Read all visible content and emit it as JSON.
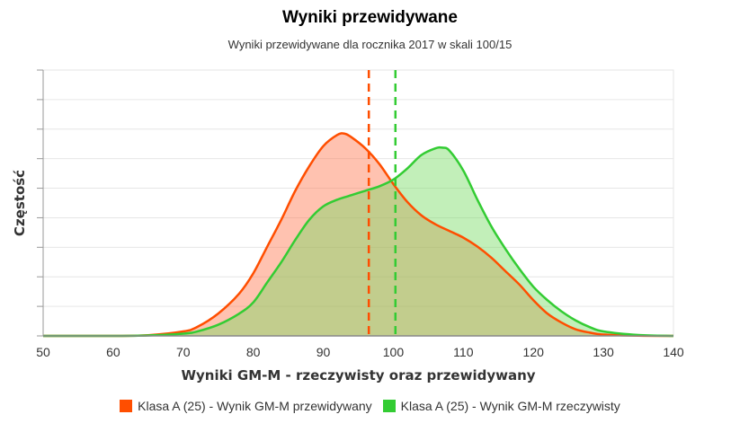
{
  "chart_data": {
    "type": "area",
    "title": "Wyniki przewidywane",
    "subtitle": "Wyniki przewidywane dla rocznika 2017 w skali 100/15",
    "xlabel": "Wyniki GM-M - rzeczywisty oraz przewidywany",
    "ylabel": "Częstość",
    "xlim": [
      50,
      140
    ],
    "ylim": [
      0,
      1
    ],
    "xticks": [
      50,
      60,
      70,
      80,
      90,
      100,
      110,
      120,
      130,
      140
    ],
    "grid": true,
    "legend_position": "bottom-center",
    "series": [
      {
        "name": "Klasa A (25) - Wynik GM-M przewidywany",
        "color": "#ff4e00",
        "fill": "rgba(255,120,80,0.45)",
        "mean": 96.5,
        "x": [
          50,
          60,
          65,
          70,
          72,
          75,
          78,
          80,
          82,
          84,
          86,
          88,
          90,
          92,
          93,
          94,
          96,
          98,
          100,
          102,
          104,
          106,
          108,
          110,
          112,
          114,
          116,
          118,
          120,
          122,
          124,
          126,
          128,
          130,
          135,
          140
        ],
        "y": [
          0,
          0,
          0.003,
          0.02,
          0.04,
          0.1,
          0.19,
          0.28,
          0.4,
          0.52,
          0.65,
          0.76,
          0.85,
          0.9,
          0.906,
          0.89,
          0.84,
          0.77,
          0.68,
          0.6,
          0.54,
          0.5,
          0.47,
          0.44,
          0.4,
          0.35,
          0.29,
          0.23,
          0.16,
          0.1,
          0.06,
          0.03,
          0.015,
          0.006,
          0.001,
          0
        ]
      },
      {
        "name": "Klasa A (25) - Wynik GM-M rzeczywisty",
        "color": "#33cc33",
        "fill": "rgba(120,220,100,0.45)",
        "mean": 100.3,
        "x": [
          50,
          60,
          65,
          70,
          72,
          75,
          78,
          80,
          82,
          84,
          86,
          88,
          90,
          92,
          94,
          96,
          98,
          100,
          102,
          104,
          106,
          107,
          108,
          110,
          112,
          114,
          116,
          118,
          120,
          122,
          124,
          126,
          128,
          130,
          135,
          140
        ],
        "y": [
          0,
          0,
          0.002,
          0.01,
          0.02,
          0.05,
          0.1,
          0.15,
          0.24,
          0.33,
          0.43,
          0.52,
          0.58,
          0.61,
          0.63,
          0.65,
          0.67,
          0.7,
          0.75,
          0.81,
          0.84,
          0.843,
          0.83,
          0.74,
          0.61,
          0.49,
          0.39,
          0.3,
          0.22,
          0.16,
          0.11,
          0.07,
          0.04,
          0.02,
          0.004,
          0
        ]
      }
    ]
  }
}
